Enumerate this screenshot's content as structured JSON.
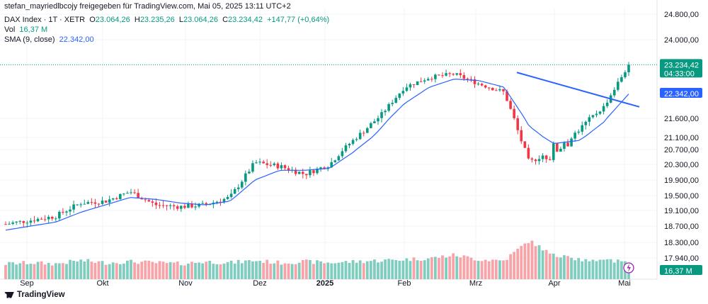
{
  "header": {
    "published_by": "stefan_mayriedlbcojy freigegeben für TradingView.com, Mai 05, 2025 13:11 UTC+2",
    "symbol": "DAX Index · 1T · XETR",
    "o_label": "O",
    "o_value": "23.064,26",
    "h_label": "H",
    "h_value": "23.235,26",
    "l_label": "L",
    "l_value": "23.064,26",
    "c_label": "C",
    "c_value": "23.234,42",
    "change": "+147,77 (+0,64%)",
    "vol_label": "Vol",
    "vol_value": "16,37 M",
    "sma_label": "SMA (9, close)",
    "sma_value": "22.342,00"
  },
  "brand": "TradingView",
  "colors": {
    "up": "#089981",
    "down": "#f23645",
    "vol_up": "#7fcdbe",
    "vol_down": "#f7a3a8",
    "sma": "#2962ff",
    "trendline": "#2962ff"
  },
  "price_tags": {
    "last_price": "23.234,42",
    "countdown": "04:33:00",
    "sma": "22.342,00",
    "volume": "16,37 M"
  },
  "chart_data": {
    "type": "candlestick",
    "title": "",
    "y_axis_ticks": [
      "24.800,00",
      "24.000,00",
      "21.600,00",
      "21.100,00",
      "20.700,00",
      "20.300,00",
      "19.900,00",
      "19.500,00",
      "19.100,00",
      "18.700,00",
      "18.300,00",
      "17.940,00"
    ],
    "x_axis_ticks": [
      "Sep",
      "Okt",
      "Nov",
      "Dez",
      "2025",
      "Feb",
      "Mrz",
      "Apr",
      "Mai"
    ],
    "series": [
      {
        "name": "DAX Index",
        "kind": "ohlc",
        "x": [
          "Sep",
          "",
          "",
          "Okt",
          "",
          "",
          "Nov",
          "",
          "",
          "Dez",
          "",
          "",
          "2025",
          "",
          "",
          "Feb",
          "",
          "",
          "Mrz",
          "",
          "",
          "Apr",
          "",
          "",
          "",
          "Mai"
        ],
        "close": [
          18750,
          18850,
          18950,
          19300,
          19350,
          19600,
          19250,
          19200,
          19250,
          19450,
          20350,
          20250,
          20050,
          20300,
          21050,
          21650,
          22550,
          22850,
          22950,
          22650,
          22400,
          20350,
          20700,
          21300,
          21950,
          23234.42
        ]
      },
      {
        "name": "SMA (9, close)",
        "kind": "line",
        "close": [
          18600,
          18700,
          18800,
          19050,
          19250,
          19450,
          19400,
          19300,
          19250,
          19350,
          19900,
          20150,
          20150,
          20200,
          20650,
          21300,
          22050,
          22550,
          22800,
          22750,
          22550,
          21400,
          20900,
          21000,
          21500,
          22342
        ]
      },
      {
        "name": "Vol",
        "kind": "volume",
        "values_m": [
          14,
          15,
          14,
          17,
          15,
          16,
          15,
          14,
          16,
          15,
          17,
          15,
          16,
          15,
          16,
          17,
          18,
          19,
          22,
          18,
          17,
          35,
          22,
          18,
          17,
          16.37
        ]
      }
    ],
    "trendline": {
      "from": [
        "Mrz",
        23000
      ],
      "to": [
        "Mai",
        21950
      ]
    },
    "grid": true,
    "legend": "top-left"
  }
}
